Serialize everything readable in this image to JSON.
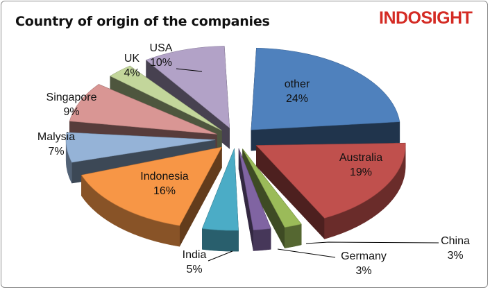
{
  "title": "Country of origin of the companies",
  "brand": "INDOSIGHT",
  "chart_data": {
    "type": "pie",
    "title": "Country of origin of the companies",
    "slices": [
      {
        "label": "other",
        "value": 24,
        "value_text": "24%",
        "color": "#4f81bd"
      },
      {
        "label": "Australia",
        "value": 19,
        "value_text": "19%",
        "color": "#c0504d"
      },
      {
        "label": "China",
        "value": 3,
        "value_text": "3%",
        "color": "#9bbb59"
      },
      {
        "label": "Germany",
        "value": 3,
        "value_text": "3%",
        "color": "#8064a2"
      },
      {
        "label": "India",
        "value": 5,
        "value_text": "5%",
        "color": "#4bacc6"
      },
      {
        "label": "Indonesia",
        "value": 16,
        "value_text": "16%",
        "color": "#f79646"
      },
      {
        "label": "Malysia",
        "value": 7,
        "value_text": "7%",
        "color": "#95b3d7"
      },
      {
        "label": "Singapore",
        "value": 9,
        "value_text": "9%",
        "color": "#d99694"
      },
      {
        "label": "UK",
        "value": 4,
        "value_text": "4%",
        "color": "#c3d69b"
      },
      {
        "label": "USA",
        "value": 10,
        "value_text": "10%",
        "color": "#b2a2c7"
      }
    ],
    "style": "3d-exploded-pie",
    "legend": "none"
  }
}
